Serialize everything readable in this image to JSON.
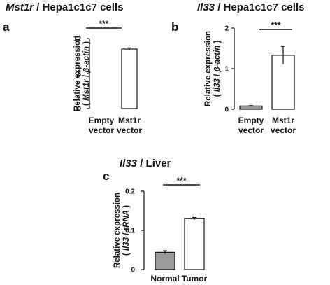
{
  "chart_data": [
    {
      "id": "a",
      "type": "bar",
      "panel_label": "a",
      "title": {
        "gene": "Mst1r",
        "rest": " / Hepa1c1c7 cells"
      },
      "ylabel": "Relative expression",
      "ylabel_sub": "( Mst1r / β-actin )",
      "yticks": [
        0,
        6,
        12
      ],
      "ylim": [
        0,
        12
      ],
      "categories": [
        [
          "Empty",
          "vector"
        ],
        [
          "Mst1r",
          "vector"
        ]
      ],
      "values": [
        0.0,
        10.2
      ],
      "errors": [
        0.0,
        0.2
      ],
      "bar_colors": [
        "#999999",
        "#ffffff"
      ],
      "significance": "***"
    },
    {
      "id": "b",
      "type": "bar",
      "panel_label": "b",
      "title": {
        "gene": "Il33",
        "rest": " / Hepa1c1c7 cells"
      },
      "ylabel": "Relative expression",
      "ylabel_sub": "( Il33 / β-actin )",
      "yticks": [
        0,
        1,
        2
      ],
      "ylim": [
        0,
        2
      ],
      "categories": [
        [
          "Empty",
          "vector"
        ],
        [
          "Mst1r",
          "vector"
        ]
      ],
      "values": [
        0.08,
        1.33
      ],
      "errors": [
        0.01,
        0.22
      ],
      "bar_colors": [
        "#999999",
        "#ffffff"
      ],
      "significance": "***"
    },
    {
      "id": "c",
      "type": "bar",
      "panel_label": "c",
      "title": {
        "gene": "Il33",
        "rest": " / Liver"
      },
      "ylabel": "Relative expression",
      "ylabel_sub": "( Il33 / rRNA )",
      "yticks": [
        0,
        0.1,
        0.2
      ],
      "ylim": [
        0,
        0.2
      ],
      "categories": [
        [
          "Normal"
        ],
        [
          "Tumor"
        ]
      ],
      "values": [
        0.044,
        0.13
      ],
      "errors": [
        0.004,
        0.003
      ],
      "bar_colors": [
        "#999999",
        "#ffffff"
      ],
      "significance": "***"
    }
  ]
}
